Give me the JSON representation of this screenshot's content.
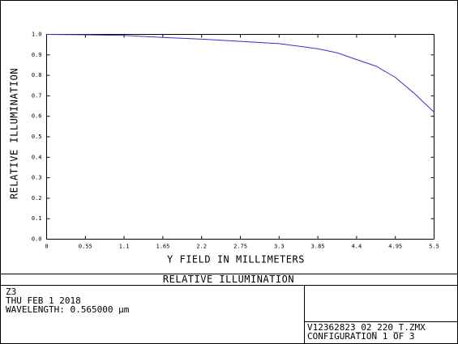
{
  "chart_data": {
    "type": "line",
    "title": "RELATIVE ILLUMINATION",
    "xlabel": "Y FIELD IN MILLIMETERS",
    "ylabel": "RELATIVE ILLUMINATION",
    "x": [
      0,
      0.55,
      1.1,
      1.65,
      2.2,
      2.75,
      3.3,
      3.85,
      4.125,
      4.4,
      4.675,
      4.95,
      5.225,
      5.5
    ],
    "values": [
      1.0,
      0.998,
      0.995,
      0.985,
      0.977,
      0.966,
      0.955,
      0.93,
      0.91,
      0.877,
      0.845,
      0.79,
      0.71,
      0.62
    ],
    "color": "#3333cc",
    "xlim": [
      0,
      5.5
    ],
    "ylim": [
      0,
      1
    ],
    "xticks": [
      0,
      0.55,
      1.1,
      1.65,
      2.2,
      2.75,
      3.3,
      3.85,
      4.4,
      4.95,
      5.5
    ],
    "yticks": [
      {
        "value": 0,
        "label": "0.0"
      },
      0.1,
      0.2,
      0.3,
      0.4,
      0.5,
      0.6,
      0.7,
      0.8,
      0.9,
      {
        "value": 1,
        "label": "1.0"
      }
    ]
  },
  "info": {
    "left": [
      "Z3",
      "THU FEB 1 2018",
      "WAVELENGTH: 0.565000 µm"
    ],
    "right": [
      "V12362823_02_220_T.ZMX",
      "CONFIGURATION 1 OF 3"
    ]
  }
}
